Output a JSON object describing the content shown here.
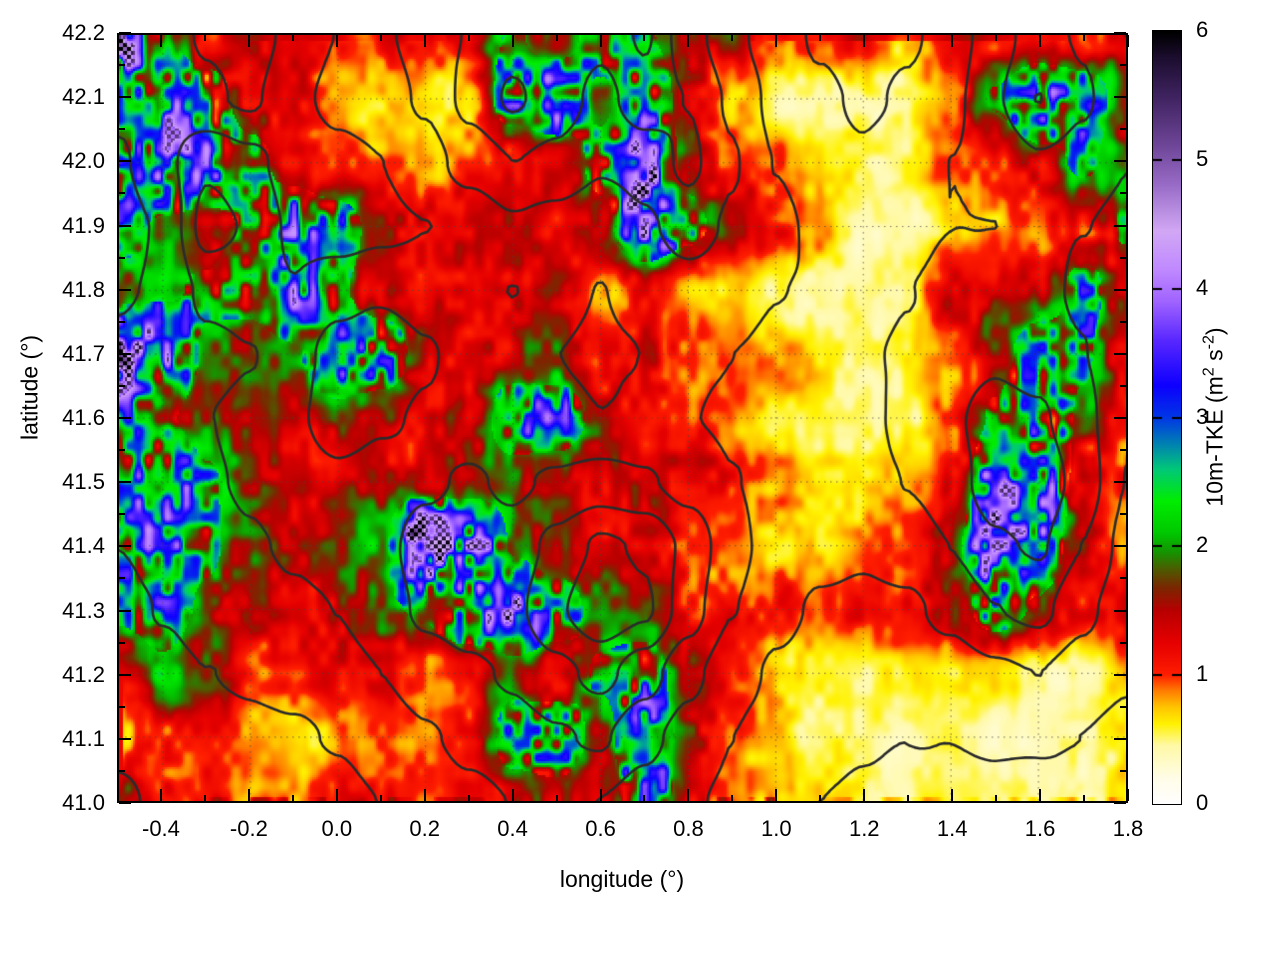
{
  "chart_data": {
    "type": "heatmap",
    "title": "",
    "xlabel": "longitude (°)",
    "ylabel": "latitude (°)",
    "x_range": [
      -0.5,
      1.8
    ],
    "y_range": [
      41.0,
      42.2
    ],
    "x_tick_labels": [
      "-0.4",
      "-0.2",
      "0.0",
      "0.2",
      "0.4",
      "0.6",
      "0.8",
      "1.0",
      "1.2",
      "1.4",
      "1.6",
      "1.8"
    ],
    "x_tick_values": [
      -0.4,
      -0.2,
      0.0,
      0.2,
      0.4,
      0.6,
      0.8,
      1.0,
      1.2,
      1.4,
      1.6,
      1.8
    ],
    "x_minor_tick_values": [
      -0.3,
      -0.1,
      0.1,
      0.3,
      0.5,
      0.7,
      0.9,
      1.1,
      1.3,
      1.5,
      1.7
    ],
    "y_tick_labels": [
      "41.0",
      "41.1",
      "41.2",
      "41.3",
      "41.4",
      "41.5",
      "41.6",
      "41.7",
      "41.8",
      "41.9",
      "42.0",
      "42.1",
      "42.2"
    ],
    "y_tick_values": [
      41.0,
      41.1,
      41.2,
      41.3,
      41.4,
      41.5,
      41.6,
      41.7,
      41.8,
      41.9,
      42.0,
      42.1,
      42.2
    ],
    "y_minor_tick_values": [
      41.05,
      41.15,
      41.25,
      41.35,
      41.45,
      41.55,
      41.65,
      41.75,
      41.85,
      41.95,
      42.05,
      42.15
    ],
    "grid_on": true,
    "colorbar": {
      "min": 0,
      "max": 6,
      "tick_labels": [
        "0",
        "1",
        "2",
        "3",
        "4",
        "5",
        "6"
      ],
      "tick_values": [
        0,
        1,
        2,
        3,
        4,
        5,
        6
      ],
      "label_parts": [
        {
          "text": "10m-TKE (m",
          "sup": false
        },
        {
          "text": "2",
          "sup": true
        },
        {
          "text": " s",
          "sup": false
        },
        {
          "text": "-2",
          "sup": true
        },
        {
          "text": ")",
          "sup": false
        }
      ],
      "position": "right"
    },
    "palette": [
      [
        0.0,
        "#ffffff"
      ],
      [
        0.2,
        "#fffde8"
      ],
      [
        0.45,
        "#fff9a8"
      ],
      [
        0.62,
        "#fff200"
      ],
      [
        0.75,
        "#ffc400"
      ],
      [
        0.88,
        "#ff7a00"
      ],
      [
        1.0,
        "#ff1e00"
      ],
      [
        1.25,
        "#e60000"
      ],
      [
        1.5,
        "#b80000"
      ],
      [
        1.68,
        "#7a2800"
      ],
      [
        1.82,
        "#4e5c00"
      ],
      [
        1.95,
        "#169300"
      ],
      [
        2.1,
        "#00c800"
      ],
      [
        2.35,
        "#00ee00"
      ],
      [
        2.6,
        "#00c87a"
      ],
      [
        2.8,
        "#0080b4"
      ],
      [
        3.0,
        "#0037e6"
      ],
      [
        3.25,
        "#0e00ff"
      ],
      [
        3.6,
        "#5a28ff"
      ],
      [
        3.9,
        "#a064ff"
      ],
      [
        4.15,
        "#c08aff"
      ],
      [
        4.45,
        "#d2a8f5"
      ],
      [
        4.8,
        "#9a6ec8"
      ],
      [
        5.1,
        "#71489b"
      ],
      [
        5.5,
        "#3f2360"
      ],
      [
        5.8,
        "#1c0e2e"
      ],
      [
        6.0,
        "#000000"
      ]
    ],
    "tke_field": {
      "comment": "approximate 10m-TKE values (m2 s-2) on a 0.1 deg grid; rows from lat 42.2 down to 41.0, cols from lon -0.5 to 1.8",
      "nx": 24,
      "ny": 13,
      "lon0": -0.5,
      "dlon": 0.1,
      "lat0": 42.2,
      "dlat": -0.1,
      "values": [
        [
          4.0,
          2.0,
          1.3,
          1.2,
          1.1,
          1.0,
          1.2,
          1.1,
          1.3,
          2.0,
          1.4,
          2.4,
          2.0,
          1.4,
          1.5,
          1.0,
          1.1,
          1.0,
          0.8,
          1.1,
          0.9,
          1.1,
          1.2,
          1.5
        ],
        [
          2.4,
          2.8,
          2.4,
          1.5,
          1.2,
          0.8,
          0.7,
          0.7,
          0.9,
          2.6,
          3.0,
          1.7,
          2.8,
          1.5,
          0.9,
          0.5,
          0.5,
          0.6,
          0.6,
          0.8,
          2.0,
          3.0,
          2.4,
          1.6
        ],
        [
          2.0,
          3.2,
          3.0,
          2.2,
          1.5,
          1.0,
          0.8,
          0.7,
          0.9,
          0.9,
          1.2,
          2.2,
          3.6,
          1.6,
          1.2,
          1.0,
          0.6,
          0.5,
          0.6,
          0.8,
          1.0,
          1.6,
          2.0,
          1.6
        ],
        [
          2.2,
          1.8,
          1.6,
          2.0,
          2.8,
          2.4,
          1.5,
          1.3,
          1.2,
          1.2,
          1.0,
          1.6,
          3.0,
          2.2,
          1.4,
          1.1,
          0.9,
          0.5,
          0.4,
          0.6,
          1.0,
          1.1,
          1.3,
          2.0
        ],
        [
          1.6,
          1.8,
          2.0,
          2.2,
          3.0,
          2.0,
          1.4,
          1.3,
          1.1,
          1.3,
          1.2,
          0.9,
          1.1,
          0.8,
          0.7,
          0.5,
          0.45,
          0.5,
          0.6,
          1.3,
          1.2,
          1.4,
          2.2,
          1.5
        ],
        [
          4.2,
          3.0,
          1.8,
          1.5,
          1.8,
          3.0,
          2.6,
          1.5,
          1.3,
          1.5,
          1.3,
          1.2,
          1.3,
          1.1,
          0.9,
          0.8,
          0.6,
          0.5,
          0.6,
          0.9,
          1.6,
          2.4,
          2.0,
          1.3
        ],
        [
          2.4,
          2.0,
          1.6,
          1.4,
          1.3,
          1.6,
          1.4,
          1.3,
          1.4,
          2.4,
          2.6,
          1.6,
          1.1,
          1.0,
          0.8,
          0.5,
          0.5,
          0.5,
          0.6,
          1.1,
          2.0,
          2.8,
          1.8,
          1.1
        ],
        [
          2.6,
          3.0,
          2.0,
          1.5,
          1.3,
          1.4,
          1.5,
          1.4,
          1.5,
          1.6,
          1.3,
          1.2,
          1.5,
          1.3,
          1.1,
          0.9,
          0.7,
          0.6,
          0.8,
          1.2,
          2.8,
          3.2,
          1.6,
          1.2
        ],
        [
          2.2,
          2.6,
          2.0,
          1.6,
          1.4,
          1.5,
          1.7,
          4.8,
          4.0,
          1.8,
          1.4,
          1.3,
          1.2,
          1.1,
          1.0,
          0.8,
          0.7,
          0.9,
          1.0,
          1.6,
          3.4,
          2.6,
          1.4,
          1.0
        ],
        [
          2.0,
          2.2,
          1.8,
          1.4,
          1.2,
          1.5,
          1.8,
          2.0,
          3.0,
          3.2,
          2.4,
          1.6,
          1.4,
          1.2,
          1.3,
          1.1,
          0.9,
          1.0,
          1.1,
          1.4,
          2.4,
          1.8,
          1.2,
          1.4
        ],
        [
          1.4,
          1.8,
          1.4,
          1.1,
          1.0,
          1.2,
          1.4,
          1.2,
          1.1,
          1.6,
          1.4,
          2.0,
          2.4,
          1.4,
          1.0,
          0.8,
          0.6,
          0.5,
          0.5,
          0.5,
          0.6,
          0.5,
          0.5,
          0.7
        ],
        [
          1.0,
          1.2,
          0.9,
          0.8,
          0.7,
          0.8,
          0.9,
          0.8,
          1.0,
          2.4,
          2.6,
          1.6,
          2.8,
          1.6,
          0.9,
          0.7,
          0.5,
          0.45,
          0.4,
          0.45,
          0.4,
          0.45,
          0.5,
          0.6
        ],
        [
          1.8,
          1.2,
          1.0,
          0.9,
          0.8,
          1.0,
          1.1,
          1.0,
          1.2,
          1.4,
          1.6,
          1.3,
          3.0,
          1.4,
          1.0,
          0.8,
          0.6,
          0.5,
          0.45,
          0.5,
          0.45,
          0.5,
          0.55,
          0.7
        ]
      ]
    },
    "contours": {
      "comment": "terrain elevation contours overlaid as dark lines; approximate relative elevation field, same grid as tke_field",
      "levels": [
        0.6,
        1.3,
        2.0,
        2.7,
        3.4,
        4.1
      ],
      "color": "#2b2b2b",
      "values": [
        [
          1.8,
          1.5,
          1.2,
          1.0,
          1.5,
          2.0,
          2.6,
          3.0,
          3.4,
          3.8,
          4.0,
          3.6,
          4.2,
          3.0,
          2.2,
          1.6,
          1.2,
          1.0,
          1.2,
          1.6,
          2.4,
          3.0,
          2.6,
          2.0
        ],
        [
          1.5,
          1.6,
          1.4,
          1.2,
          1.8,
          2.2,
          2.4,
          2.8,
          3.6,
          4.2,
          3.8,
          3.2,
          3.8,
          3.4,
          2.6,
          1.8,
          1.4,
          1.2,
          1.4,
          1.8,
          2.6,
          3.4,
          2.8,
          2.2
        ],
        [
          1.2,
          1.8,
          2.6,
          2.2,
          1.6,
          1.8,
          2.0,
          2.4,
          3.0,
          3.4,
          3.2,
          2.8,
          3.0,
          3.6,
          2.8,
          2.0,
          1.6,
          1.4,
          1.6,
          2.0,
          2.2,
          2.6,
          2.4,
          2.0
        ],
        [
          1.0,
          1.4,
          3.0,
          2.6,
          1.8,
          1.6,
          1.8,
          2.0,
          2.2,
          2.6,
          2.4,
          2.2,
          2.6,
          3.0,
          2.6,
          2.2,
          1.8,
          1.6,
          1.8,
          2.0,
          2.0,
          2.2,
          2.0,
          1.8
        ],
        [
          1.2,
          1.4,
          2.2,
          2.4,
          2.0,
          2.4,
          2.6,
          2.4,
          2.2,
          2.0,
          2.2,
          2.0,
          2.2,
          2.4,
          2.2,
          2.0,
          1.9,
          1.8,
          2.0,
          2.2,
          2.4,
          2.2,
          1.9,
          1.6
        ],
        [
          1.4,
          1.6,
          1.8,
          2.0,
          2.4,
          3.0,
          3.2,
          2.8,
          2.4,
          2.2,
          2.0,
          1.9,
          2.0,
          2.1,
          2.0,
          1.9,
          1.8,
          1.9,
          2.1,
          2.4,
          2.6,
          2.4,
          2.0,
          1.5
        ],
        [
          1.6,
          1.8,
          2.0,
          2.2,
          2.6,
          3.0,
          2.8,
          2.6,
          2.4,
          2.2,
          2.1,
          2.0,
          2.1,
          2.0,
          1.9,
          1.8,
          1.7,
          1.8,
          2.2,
          2.6,
          3.0,
          2.8,
          2.2,
          1.4
        ],
        [
          1.5,
          1.7,
          1.9,
          2.1,
          2.4,
          2.6,
          2.4,
          2.6,
          2.8,
          2.6,
          2.8,
          3.0,
          2.8,
          2.4,
          2.0,
          1.8,
          1.6,
          1.7,
          2.0,
          2.4,
          3.0,
          3.2,
          2.4,
          1.3
        ],
        [
          1.3,
          1.5,
          1.7,
          1.9,
          2.1,
          2.3,
          2.5,
          3.0,
          3.2,
          3.0,
          3.6,
          4.2,
          4.0,
          3.2,
          2.2,
          1.7,
          1.5,
          1.4,
          1.6,
          2.0,
          2.6,
          2.8,
          2.0,
          1.1
        ],
        [
          1.1,
          1.3,
          1.5,
          1.6,
          1.8,
          2.0,
          2.4,
          2.8,
          3.0,
          3.2,
          4.0,
          4.6,
          4.2,
          3.0,
          2.0,
          1.5,
          1.2,
          1.1,
          1.2,
          1.5,
          2.0,
          2.2,
          1.5,
          0.9
        ],
        [
          0.9,
          1.1,
          1.3,
          1.4,
          1.5,
          1.7,
          2.0,
          2.4,
          2.6,
          2.8,
          3.2,
          3.6,
          3.0,
          2.2,
          1.6,
          1.2,
          1.0,
          0.9,
          0.9,
          1.0,
          1.2,
          1.3,
          1.0,
          0.7
        ],
        [
          0.7,
          0.9,
          1.0,
          1.1,
          1.2,
          1.4,
          1.6,
          1.9,
          2.2,
          2.4,
          2.6,
          2.8,
          2.2,
          1.7,
          1.3,
          1.0,
          0.8,
          0.7,
          0.6,
          0.6,
          0.7,
          0.7,
          0.6,
          0.4
        ],
        [
          0.5,
          0.7,
          0.8,
          0.9,
          1.0,
          1.1,
          1.3,
          1.5,
          1.8,
          2.0,
          2.2,
          2.0,
          1.7,
          1.4,
          1.1,
          0.8,
          0.6,
          0.5,
          0.4,
          0.3,
          0.3,
          0.3,
          0.3,
          0.2
        ]
      ]
    },
    "style": {
      "grid_line_color": "rgba(70,70,70,0.75)",
      "tick_color": "#000000",
      "border_color": "#000000",
      "background": "#ffffff"
    }
  }
}
